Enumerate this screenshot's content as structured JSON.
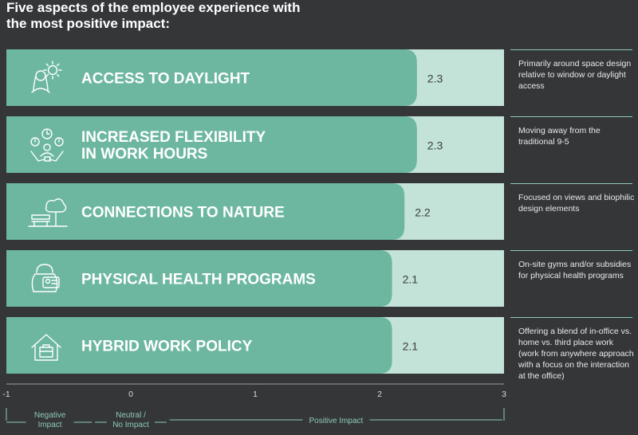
{
  "title_lines": [
    "Five aspects of the employee experience with",
    "the most positive impact:"
  ],
  "colors": {
    "background": "#343638",
    "bar": "#6db7a0",
    "bar_track": "#c4e3d8",
    "accent": "#8fc9b8"
  },
  "chart_data": {
    "type": "bar",
    "orientation": "horizontal",
    "categories": [
      "ACCESS TO DAYLIGHT",
      "INCREASED FLEXIBILITY IN WORK HOURS",
      "CONNECTIONS TO NATURE",
      "PHYSICAL HEALTH PROGRAMS",
      "HYBRID WORK POLICY"
    ],
    "category_lines": [
      [
        "ACCESS TO DAYLIGHT"
      ],
      [
        "INCREASED FLEXIBILITY",
        "IN WORK HOURS"
      ],
      [
        "CONNECTIONS TO NATURE"
      ],
      [
        "PHYSICAL HEALTH PROGRAMS"
      ],
      [
        "HYBRID WORK POLICY"
      ]
    ],
    "values": [
      2.3,
      2.3,
      2.2,
      2.1,
      2.1
    ],
    "value_labels": [
      "2.3",
      "2.3",
      "2.2",
      "2.1",
      "2.1"
    ],
    "icons": [
      "person-sun-icon",
      "clock-person-icon",
      "bench-tree-icon",
      "kettlebell-card-icon",
      "house-briefcase-icon"
    ],
    "xlim": [
      -1,
      3
    ],
    "xticks": [
      -1,
      0,
      1,
      2,
      3
    ],
    "xtick_labels": [
      "-1",
      "0",
      "1",
      "2",
      "3"
    ],
    "x_ranges": [
      {
        "lines": [
          "Negative",
          "Impact"
        ],
        "from": -1,
        "to": -0.3
      },
      {
        "lines": [
          "Neutral /",
          "No Impact"
        ],
        "from": -0.3,
        "to": 0.3
      },
      {
        "lines": [
          "Positive Impact"
        ],
        "from": 0.3,
        "to": 3
      }
    ],
    "notes": [
      "Primarily around space design relative to window or daylight access",
      "Moving away from the traditional 9-5",
      "Focused on views and biophilic design elements",
      "On-site gyms and/or subsidies for physical health programs",
      "Offering a blend of in-office vs. home vs. third place work (work from anywhere approach with a focus on the interaction at the office)"
    ]
  }
}
